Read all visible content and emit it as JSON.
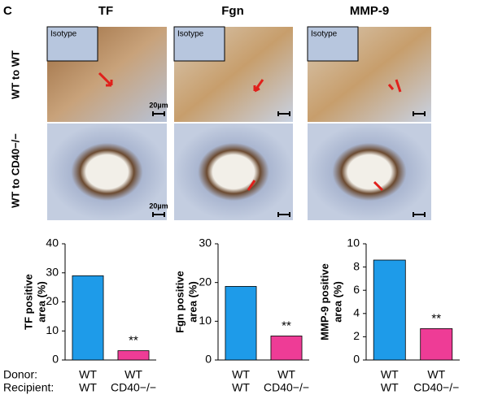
{
  "panel_label": "C",
  "micrographs": {
    "columns": [
      "TF",
      "Fgn",
      "MMP-9"
    ],
    "rows": [
      "WT to WT",
      "WT to CD40−/−"
    ],
    "inset_label": "Isotype",
    "scale_label": "20µm"
  },
  "chart_data": [
    {
      "type": "bar",
      "y_label": [
        "TF positive",
        "area (%)"
      ],
      "row_labels": [
        "Donor:",
        "Recipient:"
      ],
      "donor": [
        "WT",
        "WT"
      ],
      "categories": [
        "WT",
        "CD40−/−"
      ],
      "values": [
        29,
        3.2
      ],
      "colors": [
        "#1e9be9",
        "#ee3c96"
      ],
      "annotation": "**",
      "ylim": [
        0,
        40
      ],
      "yticks": [
        0,
        10,
        20,
        30,
        40
      ]
    },
    {
      "type": "bar",
      "y_label": [
        "Fgn positive",
        "area (%)"
      ],
      "donor": [
        "WT",
        "WT"
      ],
      "categories": [
        "WT",
        "CD40−/−"
      ],
      "values": [
        19,
        6.2
      ],
      "colors": [
        "#1e9be9",
        "#ee3c96"
      ],
      "annotation": "**",
      "ylim": [
        0,
        30
      ],
      "yticks": [
        0,
        10,
        20,
        30
      ]
    },
    {
      "type": "bar",
      "y_label": [
        "MMP-9 positive",
        "area (%)"
      ],
      "donor": [
        "WT",
        "WT"
      ],
      "categories": [
        "WT",
        "CD40−/−"
      ],
      "values": [
        8.6,
        2.7
      ],
      "colors": [
        "#1e9be9",
        "#ee3c96"
      ],
      "annotation": "**",
      "ylim": [
        0,
        10
      ],
      "yticks": [
        0,
        2,
        4,
        6,
        8,
        10
      ]
    }
  ]
}
